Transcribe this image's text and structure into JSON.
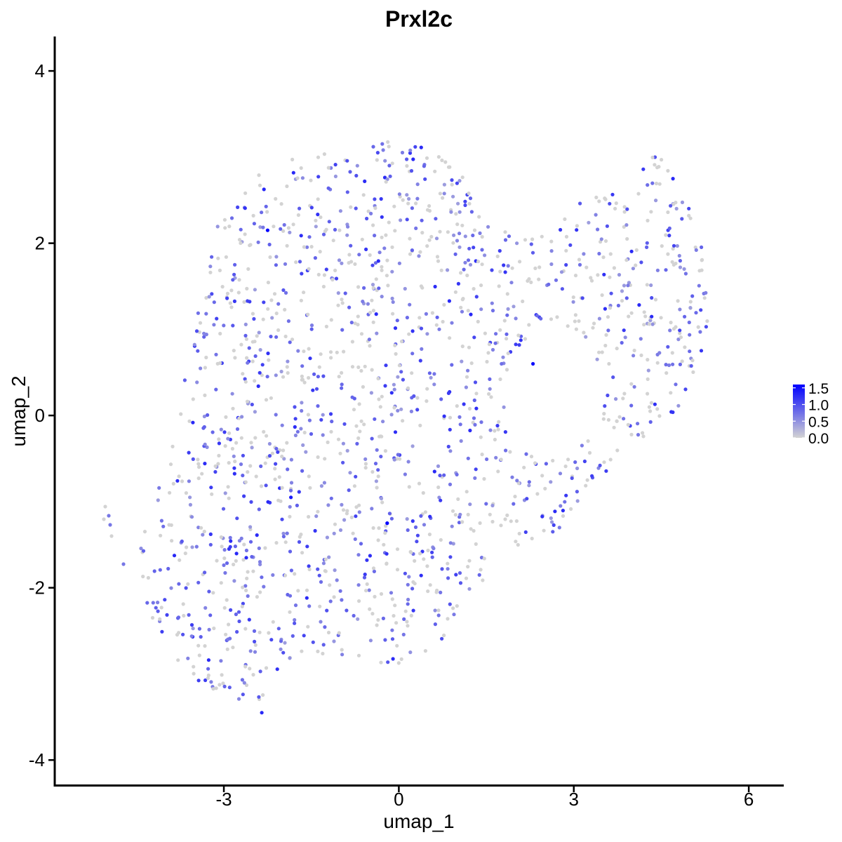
{
  "chart_data": {
    "type": "scatter",
    "title": "Prxl2c",
    "xlabel": "umap_1",
    "ylabel": "umap_2",
    "xlim": [
      -5.9,
      6.6
    ],
    "ylim": [
      -4.3,
      4.4
    ],
    "x_ticks": [
      -3,
      0,
      3,
      6
    ],
    "y_ticks": [
      -4,
      -2,
      0,
      2,
      4
    ],
    "x_tick_labels": [
      "-3",
      "0",
      "3",
      "6"
    ],
    "y_tick_labels": [
      "-4",
      "-2",
      "0",
      "2",
      "4"
    ],
    "grid": false,
    "color_scale": {
      "low_color": "#d3d3d3",
      "high_color": "#0000ff",
      "min": 0.0,
      "max": 1.6,
      "breaks": [
        0.0,
        0.5,
        1.0,
        1.5
      ],
      "labels": [
        "0.0",
        "0.5",
        "1.0",
        "1.5"
      ],
      "legend_position": "right"
    },
    "point_generation": {
      "description_note": "dense point cloud; representative sampled points",
      "count": 1650
    },
    "highlighted_points": [
      {
        "x": -2.25,
        "y": 2.15,
        "value": 1.6
      },
      {
        "x": 2.3,
        "y": 0.6,
        "value": 1.5
      },
      {
        "x": -0.2,
        "y": -1.25,
        "value": 1.6
      },
      {
        "x": -2.35,
        "y": -3.45,
        "value": 1.3
      },
      {
        "x": 4.7,
        "y": 2.75,
        "value": 1.3
      },
      {
        "x": -1.85,
        "y": -0.95,
        "value": 1.4
      }
    ]
  }
}
